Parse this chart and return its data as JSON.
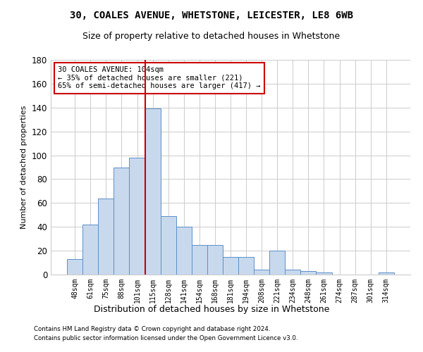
{
  "title": "30, COALES AVENUE, WHETSTONE, LEICESTER, LE8 6WB",
  "subtitle": "Size of property relative to detached houses in Whetstone",
  "xlabel": "Distribution of detached houses by size in Whetstone",
  "ylabel": "Number of detached properties",
  "categories": [
    "48sqm",
    "61sqm",
    "75sqm",
    "88sqm",
    "101sqm",
    "115sqm",
    "128sqm",
    "141sqm",
    "154sqm",
    "168sqm",
    "181sqm",
    "194sqm",
    "208sqm",
    "221sqm",
    "234sqm",
    "248sqm",
    "261sqm",
    "274sqm",
    "287sqm",
    "301sqm",
    "314sqm"
  ],
  "values": [
    13,
    42,
    64,
    90,
    98,
    139,
    49,
    40,
    25,
    25,
    15,
    15,
    4,
    20,
    4,
    3,
    2,
    0,
    0,
    0,
    2
  ],
  "bar_color": "#c8d9ee",
  "bar_edge_color": "#5b8fc9",
  "vline_x_index": 4,
  "vline_color": "#cc0000",
  "annotation_text": "30 COALES AVENUE: 104sqm\n← 35% of detached houses are smaller (221)\n65% of semi-detached houses are larger (417) →",
  "annotation_box_color": "#ffffff",
  "annotation_box_edge": "#cc0000",
  "ylim": [
    0,
    180
  ],
  "yticks": [
    0,
    20,
    40,
    60,
    80,
    100,
    120,
    140,
    160,
    180
  ],
  "footer1": "Contains HM Land Registry data © Crown copyright and database right 2024.",
  "footer2": "Contains public sector information licensed under the Open Government Licence v3.0.",
  "bg_color": "#ffffff",
  "grid_color": "#cccccc",
  "title_fontsize": 10,
  "subtitle_fontsize": 9
}
